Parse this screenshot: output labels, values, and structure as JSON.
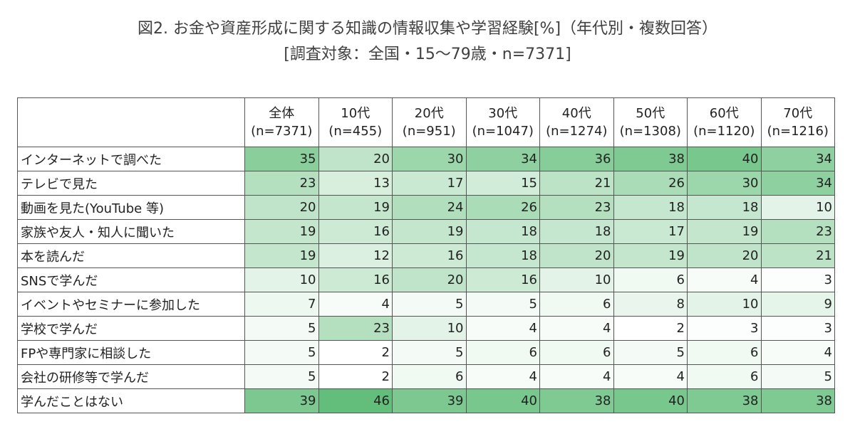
{
  "title": {
    "line1": "図2. お金や資産形成に関する知識の情報収集や学習経験[%]（年代別・複数回答）",
    "line2": "[調査対象：全国・15～79歳・n=7371]"
  },
  "colors": {
    "low": "#ffffff",
    "high": "#63be7b"
  },
  "chart_data": {
    "type": "heatmap",
    "title": "図2. お金や資産形成に関する知識の情報収集や学習経験[%]（年代別・複数回答）",
    "subtitle": "[調査対象：全国・15～79歳・n=7371]",
    "columns": [
      {
        "name": "全体",
        "n": "(n=7371)"
      },
      {
        "name": "10代",
        "n": "(n=455)"
      },
      {
        "name": "20代",
        "n": "(n=951)"
      },
      {
        "name": "30代",
        "n": "(n=1047)"
      },
      {
        "name": "40代",
        "n": "(n=1274)"
      },
      {
        "name": "50代",
        "n": "(n=1308)"
      },
      {
        "name": "60代",
        "n": "(n=1120)"
      },
      {
        "name": "70代",
        "n": "(n=1216)"
      }
    ],
    "rows": [
      {
        "label": "インターネットで調べた",
        "values": [
          35,
          20,
          30,
          34,
          36,
          38,
          40,
          34
        ]
      },
      {
        "label": "テレビで見た",
        "values": [
          23,
          13,
          17,
          15,
          21,
          26,
          30,
          34
        ]
      },
      {
        "label": "動画を見た(YouTube 等)",
        "values": [
          20,
          19,
          24,
          26,
          23,
          18,
          18,
          10
        ]
      },
      {
        "label": "家族や友人・知人に聞いた",
        "values": [
          19,
          16,
          19,
          18,
          18,
          17,
          19,
          23
        ]
      },
      {
        "label": "本を読んだ",
        "values": [
          19,
          12,
          16,
          18,
          20,
          19,
          20,
          21
        ]
      },
      {
        "label": "SNSで学んだ",
        "values": [
          10,
          16,
          20,
          16,
          10,
          6,
          4,
          3
        ]
      },
      {
        "label": "イベントやセミナーに参加した",
        "values": [
          7,
          4,
          5,
          5,
          6,
          8,
          10,
          9
        ]
      },
      {
        "label": "学校で学んだ",
        "values": [
          5,
          23,
          10,
          4,
          4,
          2,
          3,
          3
        ]
      },
      {
        "label": "FPや専門家に相談した",
        "values": [
          5,
          2,
          5,
          6,
          6,
          5,
          6,
          4
        ]
      },
      {
        "label": "会社の研修等で学んだ",
        "values": [
          5,
          2,
          6,
          4,
          4,
          4,
          6,
          5
        ]
      },
      {
        "label": "学んだことはない",
        "values": [
          39,
          46,
          39,
          40,
          38,
          40,
          38,
          38
        ]
      }
    ]
  }
}
